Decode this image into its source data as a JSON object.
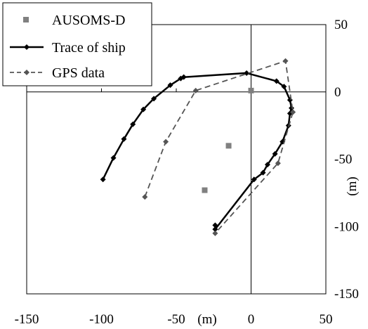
{
  "chart_data": {
    "type": "scatter",
    "title": "",
    "xlabel": "(m)",
    "ylabel": "(m)",
    "xlim": [
      -150,
      50
    ],
    "ylim": [
      -150,
      50
    ],
    "x_ticks": [
      "-150",
      "-100",
      "-50",
      "0",
      "50"
    ],
    "y_ticks": [
      "50",
      "0",
      "-50",
      "-100",
      "-150"
    ],
    "grid": false,
    "legend_position": "top-left",
    "series": [
      {
        "name": "AUSOMS-D",
        "style": "markers",
        "color": "#808080",
        "points": [
          [
            0,
            1
          ],
          [
            -15,
            -40
          ],
          [
            -31,
            -73
          ]
        ]
      },
      {
        "name": "Trace of ship",
        "style": "solid-line-diamonds",
        "color": "#000000",
        "points": [
          [
            -99,
            -65
          ],
          [
            -92,
            -49
          ],
          [
            -85,
            -35
          ],
          [
            -79,
            -24
          ],
          [
            -72,
            -13
          ],
          [
            -65,
            -5
          ],
          [
            -54,
            5
          ],
          [
            -47,
            10
          ],
          [
            -45,
            11
          ],
          [
            -3,
            14
          ],
          [
            17,
            8
          ],
          [
            22,
            4
          ],
          [
            26,
            -6
          ],
          [
            27,
            -12
          ],
          [
            26,
            -16
          ],
          [
            25,
            -25
          ],
          [
            21,
            -37
          ],
          [
            16,
            -46
          ],
          [
            11,
            -54
          ],
          [
            8,
            -60
          ],
          [
            2,
            -65
          ],
          [
            -24,
            -102
          ],
          [
            -24,
            -99
          ]
        ]
      },
      {
        "name": "GPS data",
        "style": "dashed-line-diamonds",
        "color": "#555555",
        "points": [
          [
            -71,
            -78
          ],
          [
            -57,
            -37
          ],
          [
            -37,
            1
          ],
          [
            23,
            23
          ],
          [
            28,
            -15
          ],
          [
            18,
            -53
          ],
          [
            -24,
            -105
          ]
        ]
      }
    ]
  }
}
